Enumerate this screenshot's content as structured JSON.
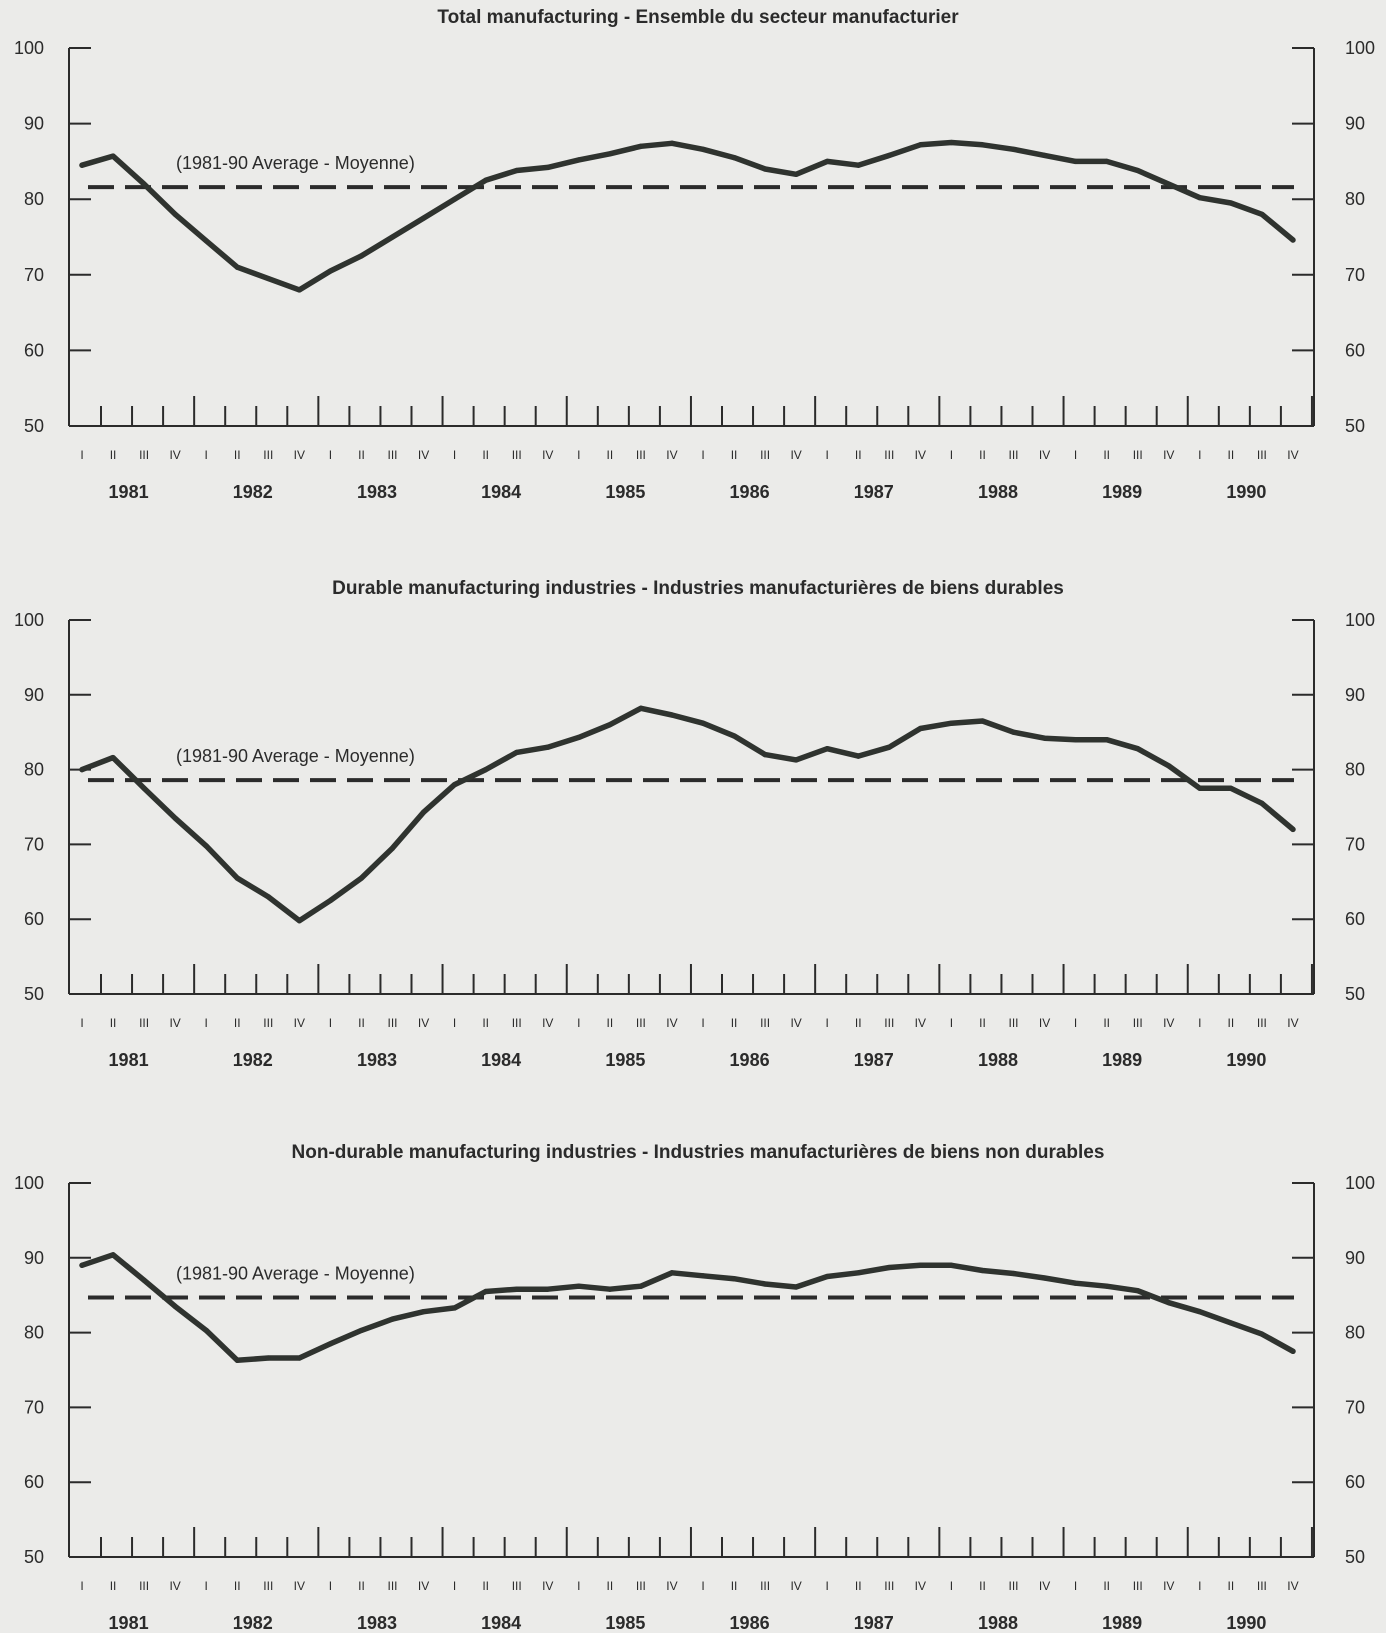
{
  "chart_data": [
    {
      "type": "line",
      "title": "Total manufacturing - Ensemble du secteur manufacturier",
      "ylim": [
        50,
        100
      ],
      "yticks": [
        50,
        60,
        70,
        80,
        90,
        100
      ],
      "quarters": [
        "I",
        "II",
        "III",
        "IV"
      ],
      "years": [
        "1981",
        "1982",
        "1983",
        "1984",
        "1985",
        "1986",
        "1987",
        "1988",
        "1989",
        "1990"
      ],
      "average": {
        "label": "(1981-90 Average - Moyenne)",
        "value": 81.6
      },
      "values": [
        84.5,
        85.7,
        82,
        78,
        74.5,
        71,
        69.5,
        68,
        70.5,
        72.5,
        75,
        77.5,
        80,
        82.5,
        83.8,
        84.2,
        85.2,
        86,
        87,
        87.4,
        86.6,
        85.5,
        84,
        83.3,
        85,
        84.5,
        85.8,
        87.2,
        87.5,
        87.2,
        86.6,
        85.8,
        85,
        85,
        83.8,
        82,
        80.2,
        79.5,
        78,
        74.6
      ]
    },
    {
      "type": "line",
      "title": "Durable manufacturing industries - Industries manufacturières de biens durables",
      "ylim": [
        50,
        100
      ],
      "yticks": [
        50,
        60,
        70,
        80,
        90,
        100
      ],
      "quarters": [
        "I",
        "II",
        "III",
        "IV"
      ],
      "years": [
        "1981",
        "1982",
        "1983",
        "1984",
        "1985",
        "1986",
        "1987",
        "1988",
        "1989",
        "1990"
      ],
      "average": {
        "label": "(1981-90 Average - Moyenne)",
        "value": 78.6
      },
      "values": [
        80,
        81.6,
        77.5,
        73.5,
        69.8,
        65.5,
        63,
        59.8,
        62.5,
        65.5,
        69.5,
        74.3,
        78,
        80,
        82.3,
        83,
        84.3,
        86,
        88.2,
        87.3,
        86.2,
        84.5,
        82,
        81.3,
        82.8,
        81.8,
        83,
        85.5,
        86.2,
        86.5,
        85,
        84.2,
        84,
        84,
        82.8,
        80.5,
        77.5,
        77.5,
        75.5,
        72
      ]
    },
    {
      "type": "line",
      "title": "Non-durable manufacturing industries - Industries manufacturières de biens non durables",
      "ylim": [
        50,
        100
      ],
      "yticks": [
        50,
        60,
        70,
        80,
        90,
        100
      ],
      "quarters": [
        "I",
        "II",
        "III",
        "IV"
      ],
      "years": [
        "1981",
        "1982",
        "1983",
        "1984",
        "1985",
        "1986",
        "1987",
        "1988",
        "1989",
        "1990"
      ],
      "average": {
        "label": "(1981-90 Average - Moyenne)",
        "value": 84.7
      },
      "values": [
        89,
        90.4,
        87,
        83.5,
        80.3,
        76.3,
        76.6,
        76.6,
        78.5,
        80.3,
        81.8,
        82.8,
        83.3,
        85.5,
        85.8,
        85.8,
        86.2,
        85.8,
        86.2,
        88,
        87.6,
        87.2,
        86.5,
        86.1,
        87.5,
        88,
        88.7,
        89,
        89,
        88.3,
        87.9,
        87.3,
        86.6,
        86.2,
        85.6,
        84,
        82.8,
        81.3,
        79.8,
        77.5
      ]
    }
  ]
}
